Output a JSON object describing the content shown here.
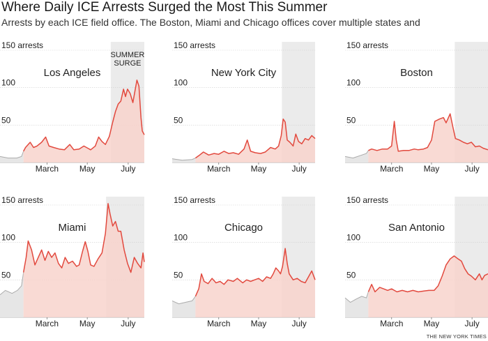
{
  "headline": "Where Daily ICE Arrests Surged the Most This Summer",
  "subhead": "Arrests by each ICE field office. The Boston, Miami and Chicago offices cover multiple states and",
  "credit": "THE NEW YORK TIMES",
  "colors": {
    "line": "#e2493e",
    "fill": "#f8d3cc",
    "pre_line": "#aaaaaa",
    "pre_fill": "#e6e6e6",
    "surge_band": "#ebebeb",
    "grid": "#cfcfcf",
    "text": "#222222"
  },
  "chart_data": [
    {
      "type": "area",
      "title": "Los Angeles",
      "annotation": "SUMMER SURGE",
      "top_tick_label": "150 arrests",
      "ylim": [
        0,
        150
      ],
      "yticks": [
        50,
        100,
        150
      ],
      "xlim": [
        0,
        215
      ],
      "xticks": [
        {
          "label": "March",
          "day": 70
        },
        {
          "label": "May",
          "day": 130
        },
        {
          "label": "July",
          "day": 191
        }
      ],
      "surge": [
        165,
        215
      ],
      "data_start_day": 35,
      "series": [
        [
          0,
          8
        ],
        [
          12,
          6
        ],
        [
          25,
          6
        ],
        [
          32,
          8
        ],
        [
          35,
          15
        ],
        [
          38,
          20
        ],
        [
          45,
          27
        ],
        [
          50,
          20
        ],
        [
          55,
          22
        ],
        [
          62,
          27
        ],
        [
          68,
          34
        ],
        [
          73,
          22
        ],
        [
          80,
          20
        ],
        [
          88,
          18
        ],
        [
          96,
          17
        ],
        [
          104,
          24
        ],
        [
          110,
          17
        ],
        [
          118,
          18
        ],
        [
          125,
          22
        ],
        [
          135,
          17
        ],
        [
          142,
          22
        ],
        [
          147,
          34
        ],
        [
          152,
          28
        ],
        [
          157,
          24
        ],
        [
          163,
          35
        ],
        [
          168,
          54
        ],
        [
          172,
          68
        ],
        [
          176,
          78
        ],
        [
          180,
          82
        ],
        [
          184,
          98
        ],
        [
          187,
          88
        ],
        [
          190,
          98
        ],
        [
          194,
          92
        ],
        [
          198,
          80
        ],
        [
          201,
          95
        ],
        [
          204,
          110
        ],
        [
          207,
          102
        ],
        [
          210,
          60
        ],
        [
          212,
          42
        ],
        [
          215,
          37
        ]
      ]
    },
    {
      "type": "area",
      "title": "New York City",
      "top_tick_label": "150 arrests",
      "ylim": [
        0,
        150
      ],
      "yticks": [
        50,
        100,
        150
      ],
      "xlim": [
        0,
        215
      ],
      "xticks": [
        {
          "label": "March",
          "day": 70
        },
        {
          "label": "May",
          "day": 130
        },
        {
          "label": "July",
          "day": 191
        }
      ],
      "surge": [
        165,
        215
      ],
      "data_start_day": 35,
      "series": [
        [
          0,
          5
        ],
        [
          15,
          3
        ],
        [
          30,
          4
        ],
        [
          35,
          6
        ],
        [
          40,
          9
        ],
        [
          47,
          14
        ],
        [
          55,
          10
        ],
        [
          63,
          12
        ],
        [
          70,
          11
        ],
        [
          78,
          15
        ],
        [
          85,
          12
        ],
        [
          92,
          13
        ],
        [
          100,
          11
        ],
        [
          108,
          18
        ],
        [
          113,
          30
        ],
        [
          118,
          15
        ],
        [
          125,
          13
        ],
        [
          133,
          12
        ],
        [
          140,
          14
        ],
        [
          148,
          20
        ],
        [
          155,
          18
        ],
        [
          160,
          22
        ],
        [
          164,
          36
        ],
        [
          167,
          58
        ],
        [
          170,
          54
        ],
        [
          173,
          30
        ],
        [
          177,
          27
        ],
        [
          182,
          22
        ],
        [
          186,
          38
        ],
        [
          190,
          28
        ],
        [
          195,
          25
        ],
        [
          200,
          32
        ],
        [
          205,
          30
        ],
        [
          210,
          36
        ],
        [
          215,
          32
        ]
      ]
    },
    {
      "type": "area",
      "title": "Boston",
      "top_tick_label": "150 arrests",
      "ylim": [
        0,
        150
      ],
      "yticks": [
        50,
        100,
        150
      ],
      "xlim": [
        0,
        215
      ],
      "xticks": [
        {
          "label": "March",
          "day": 70
        },
        {
          "label": "May",
          "day": 130
        },
        {
          "label": "July",
          "day": 191
        }
      ],
      "surge": [
        165,
        215
      ],
      "data_start_day": 35,
      "series": [
        [
          0,
          8
        ],
        [
          12,
          6
        ],
        [
          22,
          9
        ],
        [
          32,
          12
        ],
        [
          35,
          16
        ],
        [
          40,
          18
        ],
        [
          48,
          16
        ],
        [
          56,
          18
        ],
        [
          64,
          18
        ],
        [
          70,
          22
        ],
        [
          74,
          55
        ],
        [
          77,
          30
        ],
        [
          80,
          15
        ],
        [
          88,
          16
        ],
        [
          96,
          16
        ],
        [
          104,
          18
        ],
        [
          110,
          17
        ],
        [
          118,
          18
        ],
        [
          124,
          20
        ],
        [
          130,
          30
        ],
        [
          135,
          55
        ],
        [
          142,
          58
        ],
        [
          148,
          60
        ],
        [
          152,
          53
        ],
        [
          158,
          65
        ],
        [
          162,
          48
        ],
        [
          166,
          32
        ],
        [
          172,
          30
        ],
        [
          178,
          27
        ],
        [
          184,
          25
        ],
        [
          190,
          27
        ],
        [
          196,
          21
        ],
        [
          202,
          22
        ],
        [
          208,
          19
        ],
        [
          215,
          17
        ]
      ]
    },
    {
      "type": "area",
      "title": "Miami",
      "top_tick_label": "150 arrests",
      "ylim": [
        0,
        150
      ],
      "yticks": [
        50,
        100,
        150
      ],
      "xlim": [
        0,
        215
      ],
      "xticks": [
        {
          "label": "March",
          "day": 70
        },
        {
          "label": "May",
          "day": 130
        },
        {
          "label": "July",
          "day": 191
        }
      ],
      "surge": [
        158,
        215
      ],
      "data_start_day": 35,
      "series": [
        [
          0,
          30
        ],
        [
          8,
          36
        ],
        [
          18,
          32
        ],
        [
          26,
          36
        ],
        [
          32,
          42
        ],
        [
          35,
          60
        ],
        [
          39,
          80
        ],
        [
          42,
          102
        ],
        [
          47,
          90
        ],
        [
          52,
          70
        ],
        [
          57,
          80
        ],
        [
          62,
          90
        ],
        [
          67,
          76
        ],
        [
          72,
          88
        ],
        [
          77,
          80
        ],
        [
          82,
          86
        ],
        [
          87,
          72
        ],
        [
          92,
          66
        ],
        [
          97,
          80
        ],
        [
          102,
          72
        ],
        [
          108,
          75
        ],
        [
          114,
          68
        ],
        [
          118,
          70
        ],
        [
          123,
          88
        ],
        [
          127,
          101
        ],
        [
          131,
          88
        ],
        [
          135,
          70
        ],
        [
          140,
          68
        ],
        [
          146,
          78
        ],
        [
          152,
          86
        ],
        [
          157,
          112
        ],
        [
          161,
          152
        ],
        [
          164,
          138
        ],
        [
          168,
          122
        ],
        [
          172,
          128
        ],
        [
          176,
          115
        ],
        [
          180,
          115
        ],
        [
          185,
          90
        ],
        [
          190,
          72
        ],
        [
          195,
          60
        ],
        [
          200,
          80
        ],
        [
          205,
          72
        ],
        [
          210,
          66
        ],
        [
          213,
          86
        ],
        [
          215,
          74
        ]
      ]
    },
    {
      "type": "area",
      "title": "Chicago",
      "top_tick_label": "150 arrests",
      "ylim": [
        0,
        150
      ],
      "yticks": [
        50,
        100,
        150
      ],
      "xlim": [
        0,
        215
      ],
      "xticks": [
        {
          "label": "March",
          "day": 70
        },
        {
          "label": "May",
          "day": 130
        },
        {
          "label": "July",
          "day": 191
        }
      ],
      "surge": [
        165,
        215
      ],
      "data_start_day": 35,
      "series": [
        [
          0,
          22
        ],
        [
          10,
          18
        ],
        [
          20,
          20
        ],
        [
          30,
          22
        ],
        [
          35,
          28
        ],
        [
          40,
          38
        ],
        [
          44,
          58
        ],
        [
          48,
          48
        ],
        [
          54,
          45
        ],
        [
          60,
          52
        ],
        [
          66,
          46
        ],
        [
          72,
          48
        ],
        [
          78,
          44
        ],
        [
          84,
          50
        ],
        [
          92,
          48
        ],
        [
          98,
          52
        ],
        [
          106,
          46
        ],
        [
          112,
          50
        ],
        [
          118,
          48
        ],
        [
          124,
          50
        ],
        [
          130,
          52
        ],
        [
          136,
          48
        ],
        [
          142,
          54
        ],
        [
          148,
          52
        ],
        [
          152,
          58
        ],
        [
          156,
          66
        ],
        [
          160,
          62
        ],
        [
          163,
          58
        ],
        [
          166,
          68
        ],
        [
          170,
          92
        ],
        [
          173,
          72
        ],
        [
          176,
          58
        ],
        [
          182,
          50
        ],
        [
          188,
          52
        ],
        [
          194,
          48
        ],
        [
          200,
          46
        ],
        [
          205,
          54
        ],
        [
          210,
          62
        ],
        [
          215,
          50
        ]
      ]
    },
    {
      "type": "area",
      "title": "San Antonio",
      "top_tick_label": "150 arrests",
      "ylim": [
        0,
        150
      ],
      "yticks": [
        50,
        100,
        150
      ],
      "xlim": [
        0,
        215
      ],
      "xticks": [
        {
          "label": "March",
          "day": 70
        },
        {
          "label": "May",
          "day": 130
        },
        {
          "label": "July",
          "day": 191
        }
      ],
      "surge": [
        165,
        215
      ],
      "data_start_day": 35,
      "series": [
        [
          0,
          26
        ],
        [
          8,
          20
        ],
        [
          16,
          24
        ],
        [
          25,
          28
        ],
        [
          32,
          26
        ],
        [
          35,
          34
        ],
        [
          40,
          44
        ],
        [
          45,
          34
        ],
        [
          52,
          40
        ],
        [
          58,
          38
        ],
        [
          64,
          36
        ],
        [
          70,
          38
        ],
        [
          78,
          34
        ],
        [
          86,
          36
        ],
        [
          94,
          34
        ],
        [
          102,
          36
        ],
        [
          110,
          34
        ],
        [
          118,
          35
        ],
        [
          126,
          36
        ],
        [
          134,
          36
        ],
        [
          140,
          42
        ],
        [
          146,
          55
        ],
        [
          152,
          70
        ],
        [
          158,
          78
        ],
        [
          164,
          82
        ],
        [
          170,
          78
        ],
        [
          175,
          75
        ],
        [
          180,
          65
        ],
        [
          185,
          58
        ],
        [
          190,
          55
        ],
        [
          196,
          50
        ],
        [
          202,
          58
        ],
        [
          206,
          50
        ],
        [
          210,
          56
        ],
        [
          215,
          58
        ]
      ]
    }
  ]
}
